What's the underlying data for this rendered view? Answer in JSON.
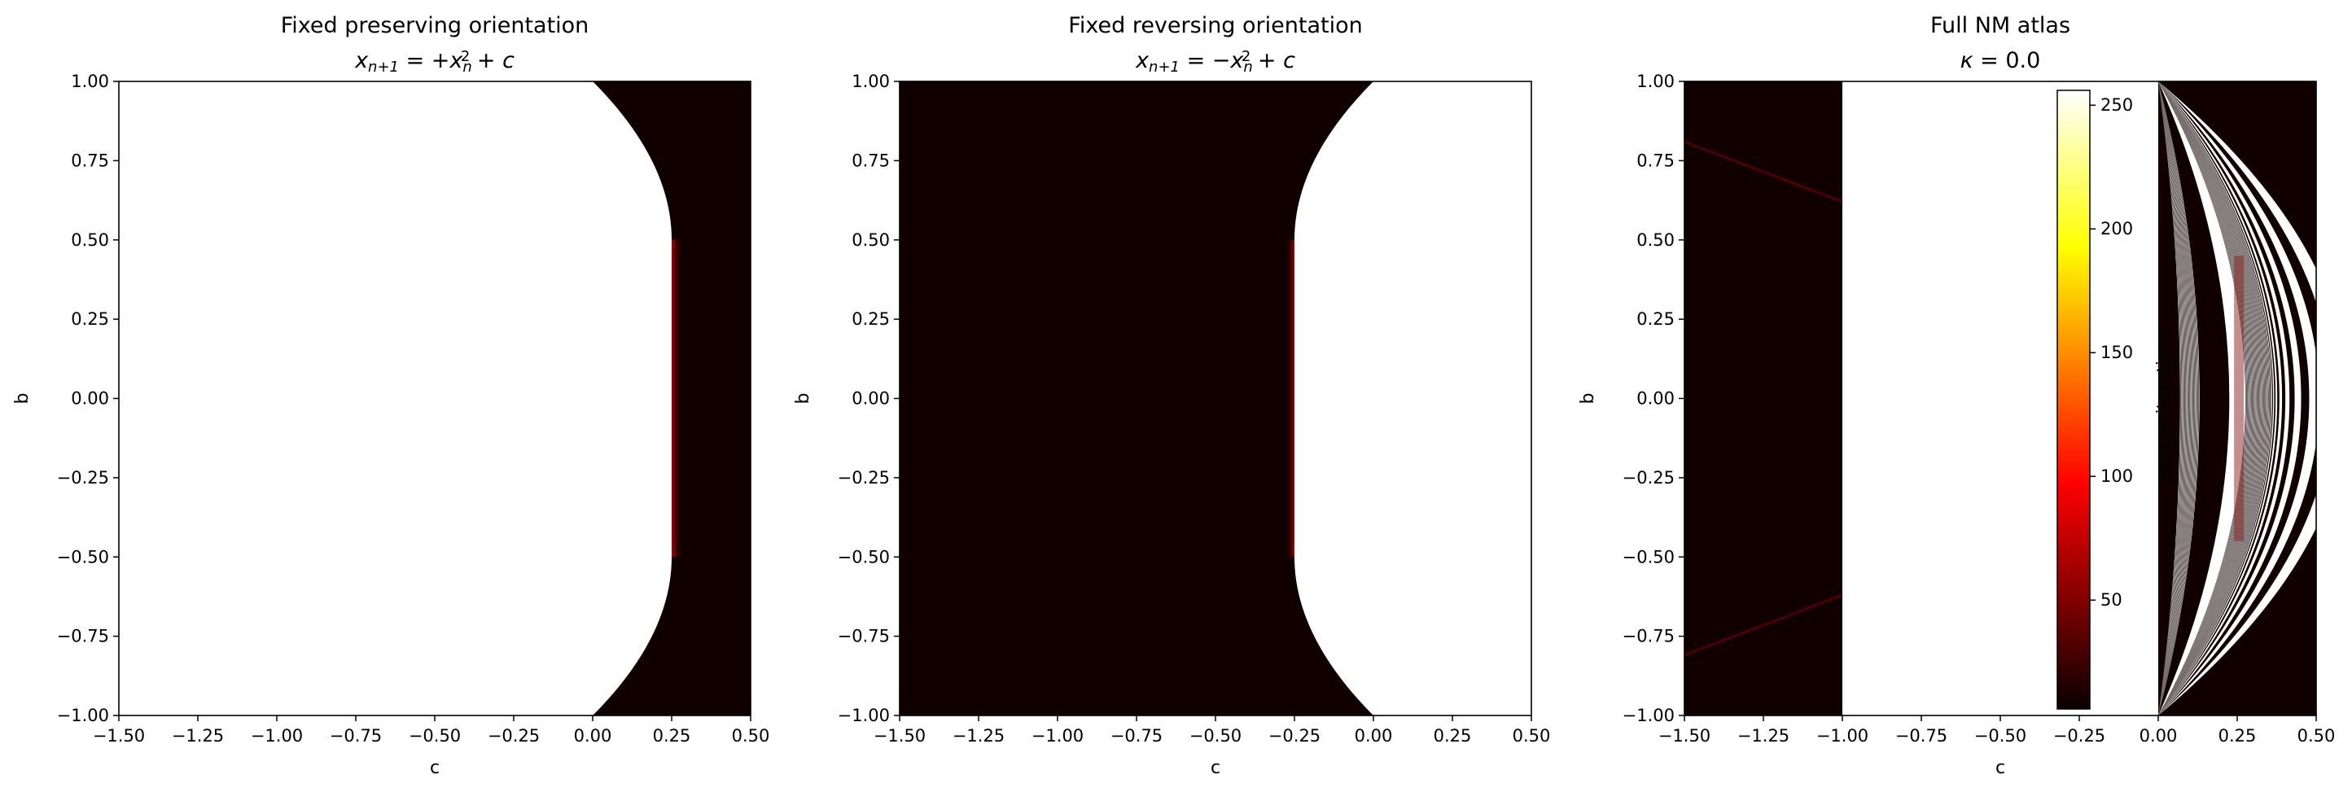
{
  "chart_data": [
    {
      "type": "heatmap",
      "title": "Fixed preserving orientation",
      "formula": [
        {
          "t": "x",
          "s": "i"
        },
        {
          "t": "n+1",
          "s": "sub"
        },
        {
          "t": " = +",
          "s": "n"
        },
        {
          "t": "x",
          "s": "i"
        },
        {
          "t": "n",
          "s": "sub"
        },
        {
          "t": "2",
          "s": "sup"
        },
        {
          "t": " + ",
          "s": "n"
        },
        {
          "t": "c",
          "s": "i"
        }
      ],
      "xlabel": "c",
      "ylabel": "b",
      "xlim": [
        -1.5,
        0.5
      ],
      "ylim": [
        -1.0,
        1.0
      ],
      "xticks": [
        "−1.50",
        "−1.25",
        "−1.00",
        "−0.75",
        "−0.50",
        "−0.25",
        "0.00",
        "0.25",
        "0.50"
      ],
      "yticks": [
        "−1.00",
        "−0.75",
        "−0.50",
        "−0.25",
        "0.00",
        "0.25",
        "0.50",
        "0.75",
        "1.00"
      ],
      "shape": "preserving"
    },
    {
      "type": "heatmap",
      "title": "Fixed reversing orientation",
      "formula": [
        {
          "t": "x",
          "s": "i"
        },
        {
          "t": "n+1",
          "s": "sub"
        },
        {
          "t": " = −",
          "s": "n"
        },
        {
          "t": "x",
          "s": "i"
        },
        {
          "t": "n",
          "s": "sub"
        },
        {
          "t": "2",
          "s": "sup"
        },
        {
          "t": " + ",
          "s": "n"
        },
        {
          "t": "c",
          "s": "i"
        }
      ],
      "xlabel": "c",
      "ylabel": "b",
      "xlim": [
        -1.5,
        0.5
      ],
      "ylim": [
        -1.0,
        1.0
      ],
      "xticks": [
        "−1.50",
        "−1.25",
        "−1.00",
        "−0.75",
        "−0.50",
        "−0.25",
        "0.00",
        "0.25",
        "0.50"
      ],
      "yticks": [
        "−1.00",
        "−0.75",
        "−0.50",
        "−0.25",
        "0.00",
        "0.25",
        "0.50",
        "0.75",
        "1.00"
      ],
      "shape": "reversing"
    },
    {
      "type": "heatmap",
      "title": "Full NM atlas",
      "formula": [
        {
          "t": "κ",
          "s": "i"
        },
        {
          "t": " = 0.0",
          "s": "n"
        }
      ],
      "xlabel": "c",
      "ylabel": "b",
      "xlim": [
        -1.5,
        0.5
      ],
      "ylim": [
        -1.0,
        1.0
      ],
      "xticks": [
        "−1.50",
        "−1.25",
        "−1.00",
        "−0.75",
        "−0.50",
        "−0.25",
        "0.00",
        "0.25",
        "0.50"
      ],
      "yticks": [
        "−1.00",
        "−0.75",
        "−0.50",
        "−0.25",
        "0.00",
        "0.25",
        "0.50",
        "0.75",
        "1.00"
      ],
      "shape": "atlas",
      "colorbar": {
        "label": "escape iterations",
        "colormap": "hot",
        "range": [
          6,
          256
        ],
        "ticks": [
          50,
          100,
          150,
          200,
          250
        ]
      }
    }
  ],
  "colors": {
    "dark": "#100000",
    "white": "#ffffff",
    "glow": "#b00000"
  }
}
